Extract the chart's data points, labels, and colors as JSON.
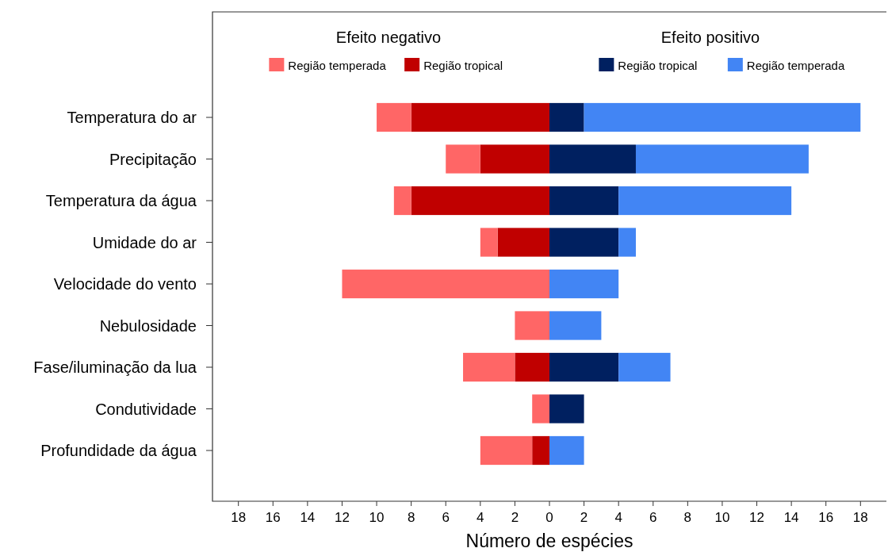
{
  "chart_data": {
    "type": "bar",
    "orientation": "horizontal",
    "stacked": true,
    "xlabel": "Número de espécies",
    "categories": [
      "Temperatura do ar",
      "Precipitação",
      "Temperatura da água",
      "Umidade do ar",
      "Velocidade do vento",
      "Nebulosidade",
      "Fase/iluminação da lua",
      "Condutividade",
      "Profundidade da água"
    ],
    "series": [
      {
        "name": "Região tropical",
        "color": "#c00000",
        "values": [
          -8,
          -4,
          -8,
          -3,
          0,
          0,
          -2,
          0,
          -1
        ]
      },
      {
        "name": "Região temperada",
        "color": "#ff6666",
        "values": [
          -2,
          -2,
          -1,
          -1,
          -12,
          -2,
          -3,
          -1,
          -3
        ]
      },
      {
        "name": "Região tropical",
        "color": "#002060",
        "values": [
          2,
          5,
          4,
          4,
          0,
          0,
          4,
          2,
          0
        ]
      },
      {
        "name": "Região temperada",
        "color": "#4285f4",
        "values": [
          16,
          10,
          10,
          1,
          4,
          3,
          3,
          0,
          2
        ]
      }
    ],
    "xlim": [
      -19.5,
      19.5
    ],
    "xticks": [
      {
        "value": -18,
        "label": "18"
      },
      {
        "value": -16,
        "label": "16"
      },
      {
        "value": -14,
        "label": "14"
      },
      {
        "value": -12,
        "label": "12"
      },
      {
        "value": -10,
        "label": "10"
      },
      {
        "value": -8,
        "label": "8"
      },
      {
        "value": -6,
        "label": "6"
      },
      {
        "value": -4,
        "label": "4"
      },
      {
        "value": -2,
        "label": "2"
      },
      0,
      2,
      4,
      6,
      8,
      10,
      12,
      14,
      16,
      18
    ],
    "annotations": [
      "Efeito negativo",
      "Efeito positivo"
    ],
    "legend": "top",
    "grid": false
  }
}
